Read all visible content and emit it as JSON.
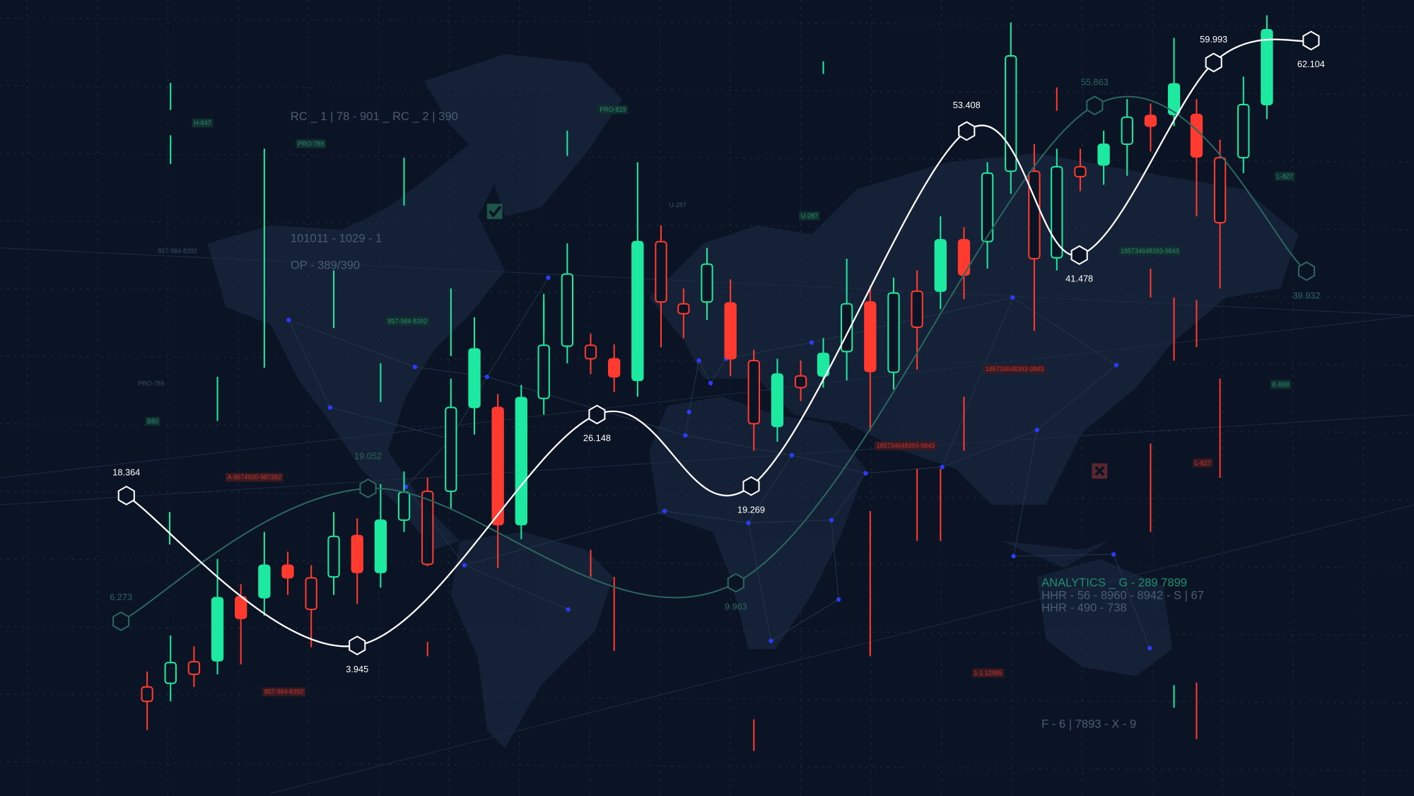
{
  "chart_data": {
    "type": "line",
    "series": [
      {
        "color": "#ffffff",
        "values": [
          18.364,
          3.945,
          26.148,
          19.269,
          53.408,
          41.478,
          59.993,
          62.104
        ]
      },
      {
        "color": "#2b6660",
        "values": [
          6.273,
          19.052,
          9.963,
          55.863,
          39.932
        ]
      }
    ]
  },
  "annotations": [
    "RC _ 1 | 78 - 901 _ RC _ 2 | 390",
    "101011 - 1029 - 1",
    "OP - 389/390",
    "ANALYTICS _ G - 289 7899",
    "HHR - 56 - 8960 - 8942 - S | 67",
    "HHR - 490 - 738",
    "F - 6 | 7893 - X - 9"
  ],
  "tags": [
    "H-847",
    "PRO-789",
    "PRO-819",
    "U-287",
    "U-287",
    "857-984-8392",
    "857-984-8392",
    "PRO-789",
    "B80",
    "A-8674930-987382",
    "857-984-8392",
    "185734648393-9843",
    "185734648393-9843",
    "185734648393-9843",
    "L-827",
    "L-827",
    "K-869",
    "1-1.12985"
  ]
}
